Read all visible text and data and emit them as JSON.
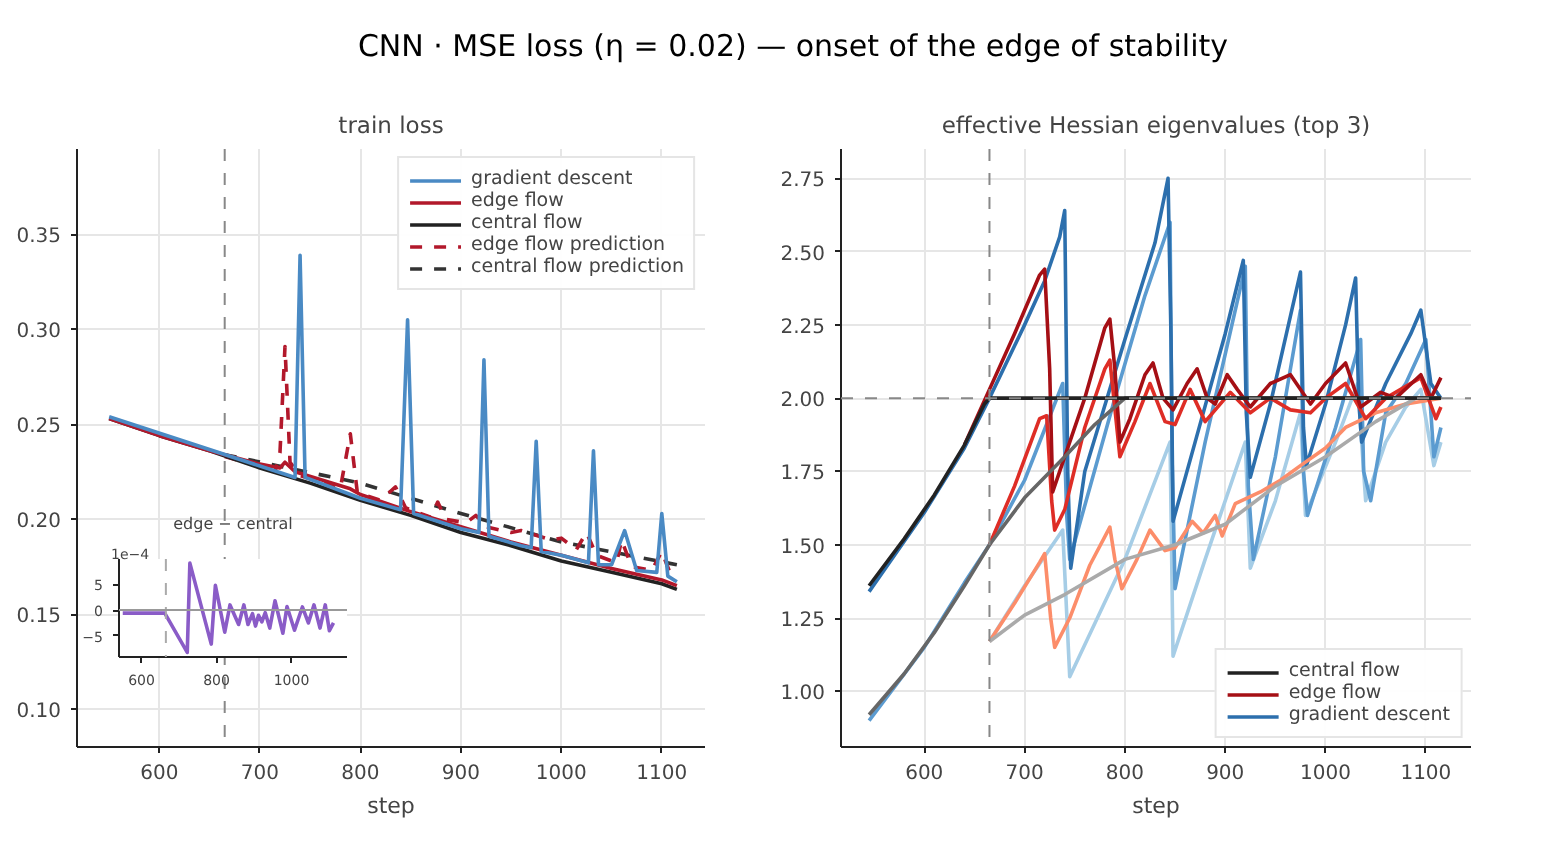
{
  "chart_data": [
    {
      "type": "line",
      "title": "CNN · MSE loss (η = 0.02) — onset of the edge of stability",
      "subtitle": "train loss",
      "xlabel": "step",
      "xlim": [
        518,
        1143
      ],
      "ylim": [
        0.08,
        0.395
      ],
      "xticks": [
        600,
        700,
        800,
        900,
        1000,
        1100
      ],
      "yticks": [
        {
          "value": 0.1,
          "label": "0.10"
        },
        {
          "value": 0.15,
          "label": "0.15"
        },
        {
          "value": 0.2,
          "label": "0.20"
        },
        {
          "value": 0.25,
          "label": "0.25"
        },
        {
          "value": 0.3,
          "label": "0.30"
        },
        {
          "value": 0.35,
          "label": "0.35"
        }
      ],
      "grid": true,
      "legend": "top right",
      "ref_lines": [
        {
          "axis": "x",
          "value": 665,
          "label": null,
          "color": "#888888",
          "line_style": "dashed"
        }
      ],
      "series": [
        {
          "name": "gradient descent",
          "color": "#4a8ac4",
          "x": [
            550,
            700,
            735,
            740,
            745,
            800,
            840,
            847,
            853,
            900,
            918,
            923,
            928,
            960,
            970,
            975,
            980,
            1000,
            1027,
            1032,
            1037,
            1050,
            1063,
            1075,
            1095,
            1100,
            1106,
            1115
          ],
          "values": [
            0.254,
            0.228,
            0.222,
            0.339,
            0.222,
            0.211,
            0.205,
            0.305,
            0.203,
            0.195,
            0.193,
            0.284,
            0.191,
            0.186,
            0.185,
            0.241,
            0.183,
            0.181,
            0.177,
            0.236,
            0.176,
            0.176,
            0.194,
            0.173,
            0.172,
            0.203,
            0.17,
            0.167
          ]
        },
        {
          "name": "edge flow",
          "color": "#b2182b",
          "x": [
            550,
            600,
            650,
            700,
            720,
            725,
            735,
            790,
            800,
            850,
            900,
            950,
            1000,
            1050,
            1100,
            1115
          ],
          "values": [
            0.253,
            0.244,
            0.236,
            0.229,
            0.227,
            0.23,
            0.225,
            0.216,
            0.213,
            0.204,
            0.196,
            0.188,
            0.181,
            0.174,
            0.168,
            0.165
          ]
        },
        {
          "name": "central flow",
          "color": "#222222",
          "x": [
            550,
            600,
            650,
            700,
            750,
            800,
            850,
            900,
            950,
            1000,
            1050,
            1100,
            1115
          ],
          "values": [
            0.253,
            0.244,
            0.236,
            0.227,
            0.219,
            0.21,
            0.202,
            0.193,
            0.186,
            0.178,
            0.172,
            0.166,
            0.163
          ]
        },
        {
          "name": "edge flow prediction",
          "color": "#b2182b",
          "line_style": "dashed",
          "x": [
            665,
            700,
            715,
            720,
            725,
            730,
            740,
            780,
            790,
            797,
            820,
            835,
            845,
            870,
            877,
            885,
            905,
            915,
            925,
            950,
            960,
            990,
            1000,
            1015,
            1025,
            1035,
            1055,
            1060,
            1070,
            1090,
            1100,
            1108,
            1115
          ],
          "values": [
            0.233,
            0.228,
            0.225,
            0.235,
            0.291,
            0.23,
            0.223,
            0.216,
            0.245,
            0.214,
            0.21,
            0.217,
            0.206,
            0.201,
            0.209,
            0.2,
            0.198,
            0.202,
            0.196,
            0.193,
            0.194,
            0.189,
            0.19,
            0.184,
            0.193,
            0.181,
            0.177,
            0.189,
            0.175,
            0.173,
            0.183,
            0.172,
            0.171
          ]
        },
        {
          "name": "central flow prediction",
          "color": "#333333",
          "line_style": "dashed",
          "x": [
            665,
            800,
            900,
            1000,
            1115
          ],
          "values": [
            0.234,
            0.219,
            0.203,
            0.188,
            0.176
          ]
        }
      ]
    },
    {
      "type": "line",
      "subtitle": "effective Hessian eigenvalues (top 3)",
      "xlabel": "step",
      "xlim": [
        517,
        1145
      ],
      "ylim": [
        0.81,
        2.85
      ],
      "xticks": [
        600,
        700,
        800,
        900,
        1000,
        1100
      ],
      "yticks": [
        {
          "value": 1.0,
          "label": "1.00"
        },
        {
          "value": 1.25,
          "label": "1.25"
        },
        {
          "value": 1.5,
          "label": "1.50"
        },
        {
          "value": 1.75,
          "label": "1.75"
        },
        {
          "value": 2.0,
          "label": "2.00"
        },
        {
          "value": 2.25,
          "label": "2.25"
        },
        {
          "value": 2.5,
          "label": "2.50"
        },
        {
          "value": 2.75,
          "label": "2.75"
        }
      ],
      "grid": true,
      "legend": "bottom right",
      "ref_lines": [
        {
          "axis": "x",
          "value": 665,
          "label": null,
          "color": "#888888",
          "line_style": "dashed"
        },
        {
          "axis": "y",
          "value": 2.0,
          "label": null,
          "color": "#888888",
          "line_style": "dashed"
        }
      ],
      "series": [
        {
          "name": "central flow",
          "color": "#222222",
          "x": [
            545,
            580,
            610,
            640,
            660,
            665,
            1115
          ],
          "values": [
            1.36,
            1.52,
            1.67,
            1.84,
            1.98,
            2.0,
            2.0
          ]
        },
        {
          "color": "#666666",
          "x": [
            545,
            580,
            610,
            640,
            665,
            700,
            740,
            770,
            800,
            1115
          ],
          "values": [
            0.92,
            1.06,
            1.2,
            1.36,
            1.5,
            1.66,
            1.8,
            1.91,
            2.0,
            2.0
          ]
        },
        {
          "color": "#aaaaaa",
          "x": [
            665,
            700,
            740,
            800,
            850,
            900,
            950,
            1000,
            1050,
            1090,
            1115
          ],
          "values": [
            1.17,
            1.26,
            1.33,
            1.45,
            1.5,
            1.57,
            1.7,
            1.8,
            1.92,
            2.0,
            2.0
          ]
        },
        {
          "name": "edge flow",
          "color": "#a50f15",
          "x": [
            640,
            665,
            690,
            715,
            720,
            725,
            728,
            735,
            760,
            780,
            785,
            790,
            795,
            805,
            820,
            828,
            838,
            848,
            862,
            872,
            882,
            890,
            902,
            912,
            925,
            945,
            965,
            985,
            1000,
            1020,
            1035,
            1055,
            1070,
            1095,
            1105,
            1115
          ],
          "values": [
            1.84,
            2.03,
            2.22,
            2.42,
            2.44,
            2.1,
            1.68,
            1.75,
            2.0,
            2.24,
            2.27,
            2.1,
            1.85,
            1.93,
            2.08,
            2.12,
            2.0,
            1.96,
            2.05,
            2.1,
            2.0,
            1.98,
            2.08,
            2.03,
            1.97,
            2.05,
            2.08,
            1.98,
            2.05,
            2.12,
            1.97,
            2.02,
            2.0,
            2.08,
            2.0,
            2.07
          ]
        },
        {
          "color": "#de2d26",
          "x": [
            665,
            690,
            715,
            722,
            727,
            730,
            740,
            760,
            780,
            785,
            795,
            810,
            825,
            840,
            850,
            865,
            880,
            905,
            925,
            945,
            965,
            985,
            1000,
            1020,
            1040,
            1060,
            1095,
            1110,
            1115
          ],
          "values": [
            1.5,
            1.7,
            1.93,
            1.94,
            1.65,
            1.55,
            1.62,
            1.9,
            2.1,
            2.13,
            1.8,
            1.92,
            2.05,
            1.92,
            1.91,
            2.03,
            1.92,
            2.02,
            1.95,
            2.0,
            1.96,
            1.95,
            2.0,
            2.05,
            1.93,
            2.0,
            2.07,
            1.93,
            1.97
          ]
        },
        {
          "color": "#fc8d6a",
          "x": [
            665,
            690,
            715,
            720,
            726,
            730,
            745,
            765,
            785,
            790,
            797,
            812,
            825,
            840,
            850,
            867,
            878,
            890,
            897,
            910,
            935,
            955,
            975,
            1000,
            1020,
            1050,
            1080,
            1115
          ],
          "values": [
            1.17,
            1.3,
            1.44,
            1.47,
            1.25,
            1.15,
            1.25,
            1.43,
            1.56,
            1.45,
            1.35,
            1.45,
            1.55,
            1.48,
            1.49,
            1.58,
            1.54,
            1.6,
            1.53,
            1.64,
            1.68,
            1.72,
            1.77,
            1.83,
            1.9,
            1.95,
            1.98,
            2.0
          ]
        },
        {
          "name": "gradient descent",
          "color": "#2c6fad",
          "x": [
            545,
            600,
            640,
            665,
            700,
            720,
            735,
            740,
            743,
            746,
            760,
            800,
            830,
            843,
            846,
            848,
            870,
            900,
            918,
            921,
            925,
            945,
            965,
            975,
            978,
            981,
            1000,
            1020,
            1030,
            1033,
            1036,
            1060,
            1085,
            1095,
            1105,
            1115
          ],
          "values": [
            1.34,
            1.61,
            1.83,
            2.0,
            2.25,
            2.4,
            2.55,
            2.64,
            1.75,
            1.42,
            1.75,
            2.2,
            2.53,
            2.75,
            2.2,
            1.58,
            1.85,
            2.22,
            2.47,
            1.95,
            1.73,
            1.98,
            2.28,
            2.43,
            1.9,
            1.77,
            1.98,
            2.25,
            2.41,
            2.0,
            1.85,
            2.05,
            2.22,
            2.3,
            2.05,
            2.0
          ]
        },
        {
          "color": "#5b9bd0",
          "x": [
            545,
            600,
            640,
            665,
            700,
            738,
            742,
            745,
            790,
            820,
            845,
            847,
            850,
            880,
            920,
            923,
            928,
            950,
            975,
            978,
            982,
            1010,
            1035,
            1038,
            1045,
            1060,
            1080,
            1100,
            1108,
            1115
          ],
          "values": [
            0.9,
            1.15,
            1.37,
            1.5,
            1.72,
            2.05,
            1.6,
            1.45,
            2.0,
            2.35,
            2.6,
            1.8,
            1.35,
            1.85,
            2.45,
            1.7,
            1.45,
            1.8,
            2.3,
            1.75,
            1.6,
            1.9,
            2.2,
            1.75,
            1.65,
            1.95,
            2.05,
            2.2,
            1.8,
            1.9
          ]
        },
        {
          "color": "#a6cde6",
          "x": [
            665,
            700,
            738,
            745,
            800,
            845,
            848,
            880,
            920,
            925,
            950,
            975,
            980,
            1010,
            1032,
            1040,
            1060,
            1080,
            1095,
            1108,
            1115
          ],
          "values": [
            1.17,
            1.36,
            1.55,
            1.05,
            1.45,
            1.85,
            1.12,
            1.45,
            1.85,
            1.42,
            1.65,
            1.95,
            1.6,
            1.85,
            2.05,
            1.65,
            1.85,
            1.97,
            2.03,
            1.77,
            1.85
          ]
        }
      ]
    },
    {
      "type": "line",
      "subtitle": "edge − central",
      "annotations": [
        "1e−4"
      ],
      "xlim": [
        540,
        1148
      ],
      "ylim": [
        -9.1,
        9.9
      ],
      "xticks": [
        600,
        800,
        1000
      ],
      "yticks": [
        {
          "value": -5,
          "label": "−5"
        },
        0,
        5
      ],
      "ref_lines": [
        {
          "axis": "x",
          "value": 665,
          "label": null,
          "color": "#aaaaaa",
          "line_style": "dashed"
        },
        {
          "axis": "y",
          "value": 0,
          "label": null,
          "color": "#999999",
          "line_style": "solid"
        }
      ],
      "series": [
        {
          "color": "#8a5cc7",
          "x": [
            550,
            662,
            722,
            729,
            786,
            797,
            822,
            836,
            859,
            873,
            884,
            896,
            904,
            912,
            921,
            930,
            942,
            956,
            977,
            988,
            1008,
            1029,
            1045,
            1060,
            1076,
            1090,
            1101,
            1112
          ],
          "values": [
            -0.6,
            -0.6,
            -8.2,
            9.1,
            -6.6,
            4.8,
            -4.3,
            1,
            -2.8,
            1,
            -2.8,
            -0.7,
            -3.1,
            -1,
            -2.3,
            -0.5,
            -3.5,
            1.8,
            -4.5,
            0.7,
            -3.9,
            0.6,
            -2.5,
            1,
            -3.5,
            1,
            -4,
            -2.5
          ]
        }
      ]
    }
  ]
}
